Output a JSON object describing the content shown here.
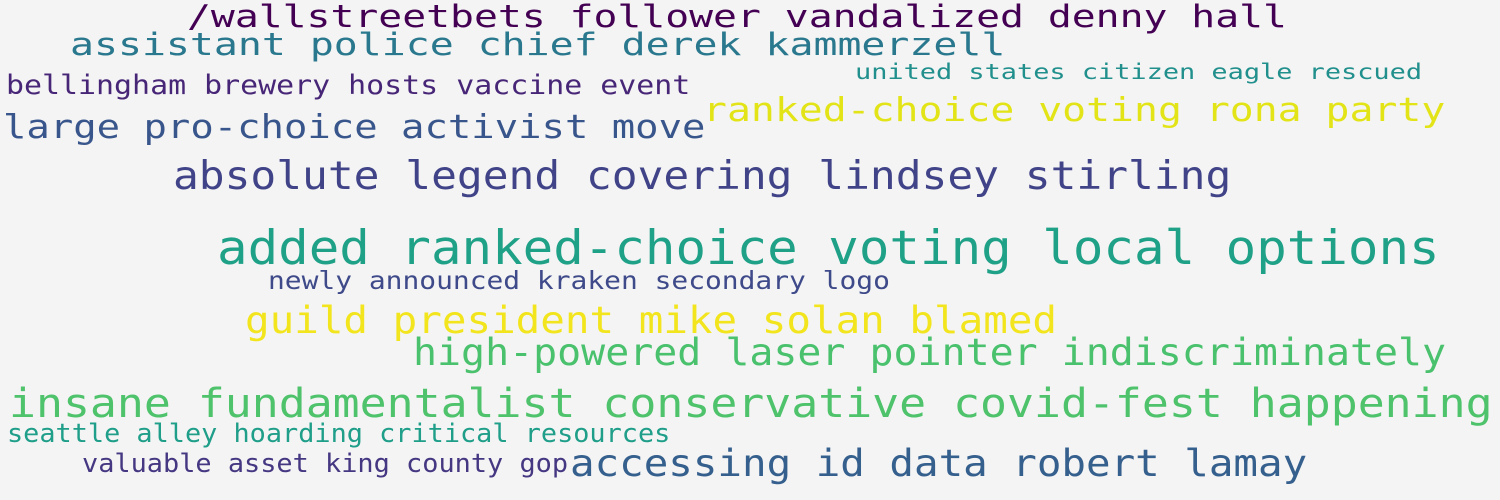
{
  "word_cloud": {
    "phrases": [
      {
        "id": "p1",
        "text": "/wallstreetbets follower vandalized denny hall",
        "color": "#440154"
      },
      {
        "id": "p2",
        "text": "assistant police chief derek kammerzell",
        "color": "#2a788e"
      },
      {
        "id": "p3",
        "text": "united states citizen eagle rescued",
        "color": "#21908d"
      },
      {
        "id": "p4",
        "text": "bellingham brewery hosts vaccine event",
        "color": "#482677"
      },
      {
        "id": "p5",
        "text": "ranked-choice voting rona party",
        "color": "#e3e418"
      },
      {
        "id": "p6",
        "text": "large pro-choice activist move",
        "color": "#39568c"
      },
      {
        "id": "p7",
        "text": "absolute legend covering lindsey stirling",
        "color": "#404387"
      },
      {
        "id": "p8",
        "text": "added ranked-choice voting local options",
        "color": "#1fa187"
      },
      {
        "id": "p9",
        "text": "newly announced kraken secondary logo",
        "color": "#3e4a89"
      },
      {
        "id": "p10",
        "text": "guild president mike solan blamed",
        "color": "#f2e51d"
      },
      {
        "id": "p11",
        "text": "high-powered laser pointer indiscriminately",
        "color": "#4ac16d"
      },
      {
        "id": "p12",
        "text": "insane fundamentalist conservative covid-fest happening",
        "color": "#4ec36b"
      },
      {
        "id": "p13",
        "text": "seattle alley hoarding critical resources",
        "color": "#1f9e89"
      },
      {
        "id": "p14",
        "text": "valuable asset king county gop",
        "color": "#453781"
      },
      {
        "id": "p15",
        "text": "accessing id data robert lamay",
        "color": "#355f8d"
      }
    ]
  }
}
